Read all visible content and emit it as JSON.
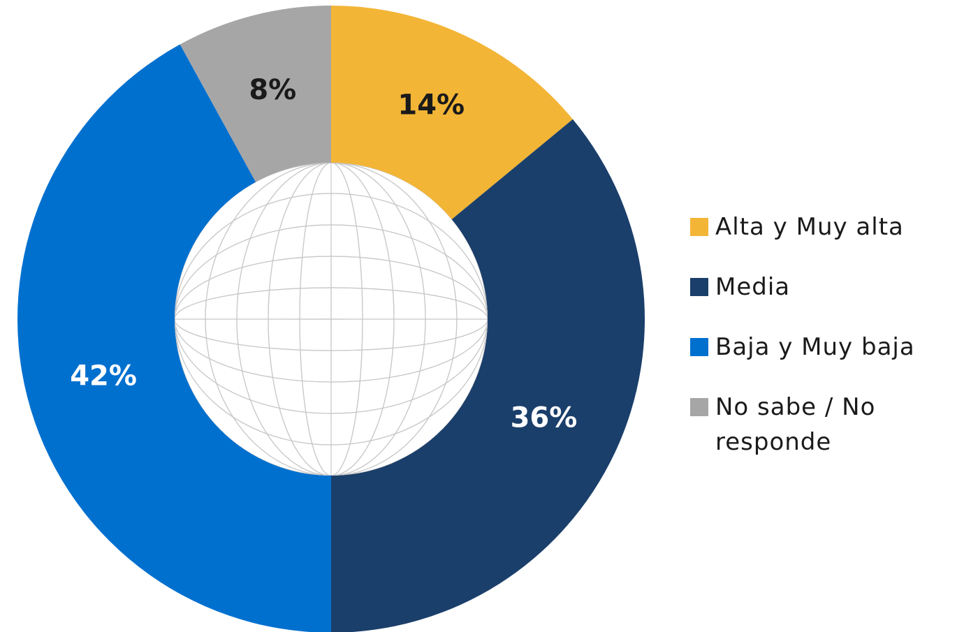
{
  "chart_data": {
    "type": "pie",
    "categories": [
      "Alta y Muy alta",
      "Media",
      "Baja y Muy baja",
      "No sabe / No responde"
    ],
    "values": [
      14,
      36,
      42,
      8
    ],
    "value_labels": [
      "14%",
      "36%",
      "42%",
      "8%"
    ],
    "colors": [
      "#F3B536",
      "#1B3F6B",
      "#0070CF",
      "#A6A6A6"
    ],
    "legend": "right"
  }
}
